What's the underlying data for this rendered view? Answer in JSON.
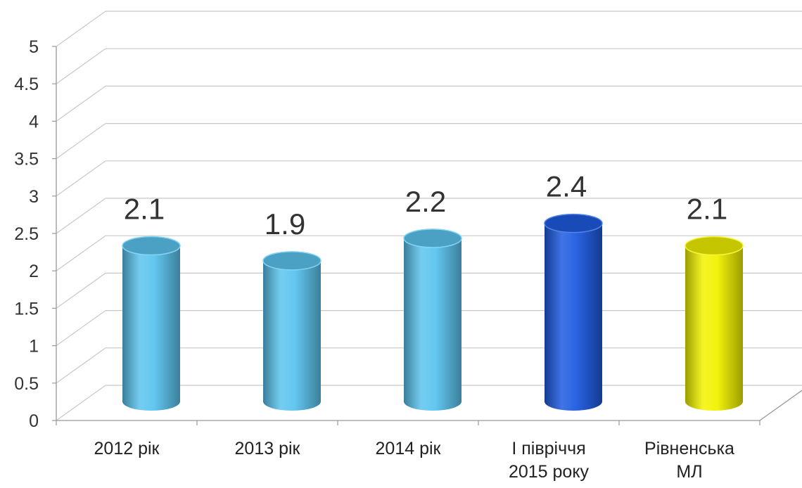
{
  "chart_data": {
    "type": "bar",
    "style": "3d-cylinder",
    "categories": [
      [
        "2012 рік"
      ],
      [
        "2013 рік"
      ],
      [
        "2014 рік"
      ],
      [
        "І півріччя",
        "2015 року"
      ],
      [
        "Рівненська",
        "МЛ"
      ]
    ],
    "values": [
      2.1,
      1.9,
      2.2,
      2.4,
      2.1
    ],
    "data_labels": [
      "2.1",
      "1.9",
      "2.2",
      "2.4",
      "2.1"
    ],
    "bar_colors": [
      "#5BC4EF",
      "#5BC4EF",
      "#5BC4EF",
      "#1F5BE0",
      "#F2F200"
    ],
    "ylim": [
      0,
      5
    ],
    "yticks": [
      0,
      0.5,
      1,
      1.5,
      2,
      2.5,
      3,
      3.5,
      4,
      4.5,
      5
    ],
    "ytick_labels": [
      "0",
      "0.5",
      "1",
      "1.5",
      "2",
      "2.5",
      "3",
      "3.5",
      "4",
      "4.5",
      "5"
    ],
    "grid": true,
    "legend": "none",
    "title": "",
    "xlabel": "",
    "ylabel": ""
  }
}
